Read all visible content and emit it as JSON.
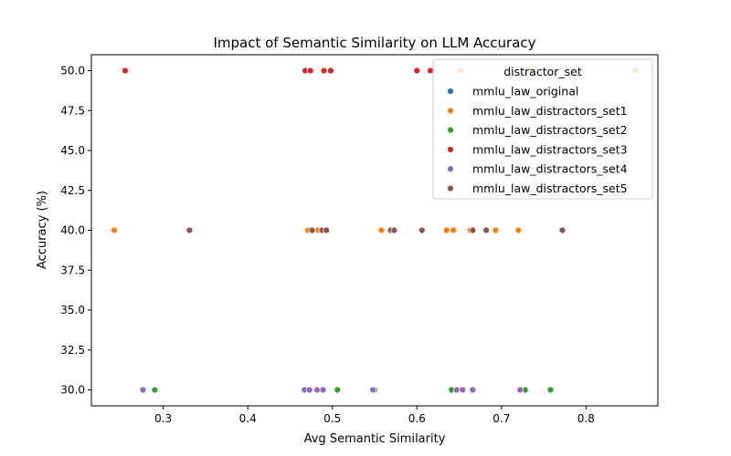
{
  "chart_data": {
    "type": "scatter",
    "title": "Impact of Semantic Similarity on LLM Accuracy",
    "xlabel": "Avg Semantic Similarity",
    "ylabel": "Accuracy (%)",
    "xlim": [
      0.215,
      0.885
    ],
    "ylim": [
      29.0,
      51.0
    ],
    "xticks": [
      0.3,
      0.4,
      0.5,
      0.6,
      0.7,
      0.8
    ],
    "yticks": [
      30.0,
      32.5,
      35.0,
      37.5,
      40.0,
      42.5,
      45.0,
      47.5,
      50.0
    ],
    "grid": false,
    "legend": {
      "title": "distractor_set",
      "placement": "top-right"
    },
    "series": [
      {
        "name": "mmlu_law_original",
        "color": "#1f77b4",
        "points": []
      },
      {
        "name": "mmlu_law_distractors_set1",
        "color": "#ff7f0e",
        "points": [
          [
            0.242,
            40
          ],
          [
            0.471,
            40
          ],
          [
            0.483,
            40
          ],
          [
            0.558,
            40
          ],
          [
            0.635,
            40
          ],
          [
            0.643,
            40
          ],
          [
            0.663,
            40
          ],
          [
            0.693,
            40
          ],
          [
            0.72,
            40
          ],
          [
            0.652,
            50
          ],
          [
            0.737,
            50
          ],
          [
            0.858,
            50
          ]
        ]
      },
      {
        "name": "mmlu_law_distractors_set2",
        "color": "#2ca02c",
        "points": [
          [
            0.29,
            30
          ],
          [
            0.468,
            30
          ],
          [
            0.506,
            30
          ],
          [
            0.55,
            30
          ],
          [
            0.641,
            30
          ],
          [
            0.728,
            30
          ],
          [
            0.758,
            30
          ]
        ]
      },
      {
        "name": "mmlu_law_distractors_set3",
        "color": "#d62728",
        "points": [
          [
            0.255,
            50
          ],
          [
            0.468,
            50
          ],
          [
            0.474,
            50
          ],
          [
            0.49,
            50
          ],
          [
            0.498,
            50
          ],
          [
            0.6,
            50
          ],
          [
            0.616,
            50
          ]
        ]
      },
      {
        "name": "mmlu_law_distractors_set4",
        "color": "#9467bd",
        "points": [
          [
            0.276,
            30
          ],
          [
            0.467,
            30
          ],
          [
            0.473,
            30
          ],
          [
            0.482,
            30
          ],
          [
            0.489,
            30
          ],
          [
            0.548,
            30
          ],
          [
            0.647,
            30
          ],
          [
            0.654,
            30
          ],
          [
            0.666,
            30
          ],
          [
            0.722,
            30
          ]
        ]
      },
      {
        "name": "mmlu_law_distractors_set5",
        "color": "#8c564b",
        "points": [
          [
            0.331,
            40
          ],
          [
            0.476,
            40
          ],
          [
            0.488,
            40
          ],
          [
            0.493,
            40
          ],
          [
            0.569,
            40
          ],
          [
            0.573,
            40
          ],
          [
            0.606,
            40
          ],
          [
            0.666,
            40
          ],
          [
            0.682,
            40
          ],
          [
            0.772,
            40
          ]
        ]
      }
    ]
  }
}
